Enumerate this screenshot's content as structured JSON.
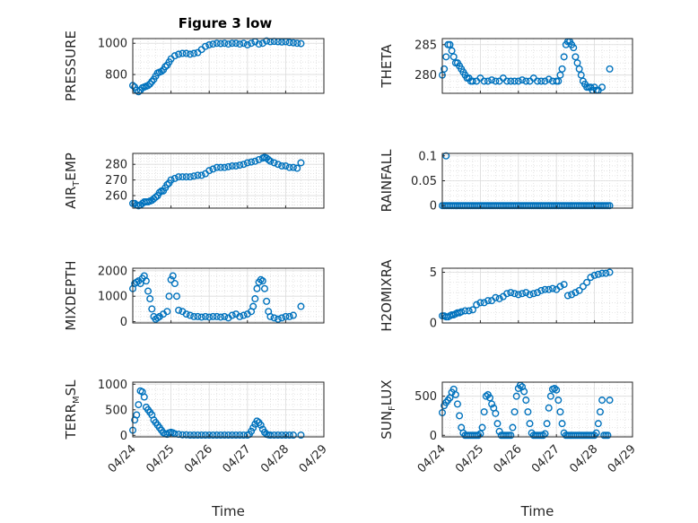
{
  "figure": {
    "title": "Figure 3 low",
    "x_axis_label": "Time",
    "marker_color": "#0072BD"
  },
  "chart_data": [
    {
      "type": "scatter",
      "ylabel": "PRESSURE",
      "ylabel_base": "PRESSURE",
      "ylabel_sub": "",
      "ylabel_rest": "",
      "xlim": [
        "04/24",
        "04/29"
      ],
      "ylim": [
        680,
        1030
      ],
      "yticks": [
        800,
        1000
      ],
      "xticks": [
        "04/24",
        "04/25",
        "04/26",
        "04/27",
        "04/28",
        "04/29"
      ],
      "grid": true,
      "x": [
        0.0,
        0.05,
        0.1,
        0.15,
        0.2,
        0.25,
        0.3,
        0.35,
        0.4,
        0.45,
        0.5,
        0.55,
        0.6,
        0.65,
        0.7,
        0.75,
        0.8,
        0.85,
        0.9,
        0.95,
        1.0,
        1.1,
        1.2,
        1.3,
        1.4,
        1.5,
        1.6,
        1.7,
        1.8,
        1.9,
        2.0,
        2.1,
        2.2,
        2.3,
        2.4,
        2.5,
        2.6,
        2.7,
        2.8,
        2.9,
        3.0,
        3.1,
        3.2,
        3.3,
        3.4,
        3.5,
        3.6,
        3.7,
        3.8,
        3.9,
        4.0,
        4.1,
        4.2,
        4.3,
        4.4
      ],
      "y": [
        730,
        720,
        700,
        690,
        700,
        715,
        720,
        725,
        730,
        740,
        755,
        770,
        790,
        810,
        815,
        820,
        830,
        850,
        860,
        880,
        900,
        920,
        930,
        935,
        935,
        930,
        935,
        940,
        960,
        980,
        990,
        995,
        1000,
        998,
        1000,
        995,
        1000,
        1000,
        995,
        1000,
        990,
        1000,
        1010,
        995,
        1000,
        1015,
        1010,
        1012,
        1010,
        1008,
        1010,
        1005,
        1003,
        1000,
        998
      ]
    },
    {
      "type": "scatter",
      "ylabel": "THETA",
      "ylabel_base": "THETA",
      "ylabel_sub": "",
      "ylabel_rest": "",
      "xlim": [
        "04/24",
        "04/29"
      ],
      "ylim": [
        277,
        286
      ],
      "yticks": [
        280,
        285
      ],
      "xticks": [
        "04/24",
        "04/25",
        "04/26",
        "04/27",
        "04/28",
        "04/29"
      ],
      "grid": true,
      "x": [
        0.0,
        0.05,
        0.1,
        0.15,
        0.2,
        0.25,
        0.3,
        0.35,
        0.4,
        0.45,
        0.5,
        0.55,
        0.6,
        0.65,
        0.7,
        0.75,
        0.8,
        0.9,
        1.0,
        1.1,
        1.2,
        1.3,
        1.4,
        1.5,
        1.6,
        1.7,
        1.8,
        1.9,
        2.0,
        2.1,
        2.2,
        2.3,
        2.4,
        2.5,
        2.6,
        2.7,
        2.8,
        2.9,
        3.0,
        3.05,
        3.1,
        3.15,
        3.2,
        3.25,
        3.3,
        3.35,
        3.4,
        3.45,
        3.5,
        3.55,
        3.6,
        3.65,
        3.7,
        3.75,
        3.8,
        3.85,
        3.9,
        3.95,
        4.0,
        4.05,
        4.1,
        4.2,
        4.4
      ],
      "y": [
        280,
        281,
        283,
        285,
        285,
        284,
        283,
        282,
        282,
        281.5,
        281,
        280.5,
        280,
        279.5,
        279.5,
        279,
        279,
        279,
        279.5,
        279,
        279,
        279.2,
        279,
        279,
        279.5,
        279,
        279,
        279,
        279,
        279.2,
        279,
        279,
        279.5,
        279,
        279,
        279,
        279.3,
        279,
        279,
        279,
        280,
        281,
        283,
        285,
        285.5,
        285.5,
        285,
        284.5,
        283,
        282,
        281,
        280,
        279,
        278.5,
        278,
        278,
        278,
        277.5,
        278,
        277.5,
        277.5,
        278,
        281
      ]
    },
    {
      "type": "scatter",
      "ylabel": "AIR_TEMP",
      "ylabel_base": "AIR",
      "ylabel_sub": "T",
      "ylabel_rest": "EMP",
      "xlim": [
        "04/24",
        "04/29"
      ],
      "ylim": [
        252,
        287
      ],
      "yticks": [
        260,
        270,
        280
      ],
      "xticks": [
        "04/24",
        "04/25",
        "04/26",
        "04/27",
        "04/28",
        "04/29"
      ],
      "grid": true,
      "x": [
        0.0,
        0.05,
        0.1,
        0.15,
        0.2,
        0.25,
        0.3,
        0.35,
        0.4,
        0.45,
        0.5,
        0.55,
        0.6,
        0.65,
        0.7,
        0.75,
        0.8,
        0.85,
        0.9,
        0.95,
        1.0,
        1.1,
        1.2,
        1.3,
        1.4,
        1.5,
        1.6,
        1.7,
        1.8,
        1.9,
        2.0,
        2.1,
        2.2,
        2.3,
        2.4,
        2.5,
        2.6,
        2.7,
        2.8,
        2.9,
        3.0,
        3.1,
        3.2,
        3.3,
        3.4,
        3.45,
        3.5,
        3.55,
        3.6,
        3.7,
        3.8,
        3.9,
        4.0,
        4.1,
        4.2,
        4.3,
        4.4
      ],
      "y": [
        255,
        255,
        254,
        253.5,
        254,
        255,
        256,
        256,
        256,
        256.5,
        257,
        258,
        259,
        260,
        262,
        263,
        263,
        265,
        267,
        268,
        270,
        271,
        272,
        272,
        272,
        272,
        272.5,
        273,
        273,
        274,
        276,
        277,
        278,
        278,
        278,
        278.5,
        279,
        279,
        279.5,
        280,
        281,
        281.5,
        282,
        283,
        284,
        284.5,
        284,
        283,
        282,
        281,
        280,
        279,
        279,
        278,
        278,
        277.5,
        281
      ]
    },
    {
      "type": "scatter",
      "ylabel": "RAINFALL",
      "ylabel_base": "RAINFALL",
      "ylabel_sub": "",
      "ylabel_rest": "",
      "xlim": [
        "04/24",
        "04/29"
      ],
      "ylim": [
        -0.005,
        0.105
      ],
      "yticks": [
        0,
        0.05,
        0.1
      ],
      "ytick_labels": [
        "0",
        "0.05",
        "0.1"
      ],
      "xticks": [
        "04/24",
        "04/25",
        "04/26",
        "04/27",
        "04/28",
        "04/29"
      ],
      "grid": true,
      "x": [
        0.0,
        0.05,
        0.1,
        0.15,
        0.2,
        0.25,
        0.3,
        0.35,
        0.4,
        0.45,
        0.5,
        0.55,
        0.6,
        0.65,
        0.7,
        0.75,
        0.8,
        0.85,
        0.9,
        0.95,
        1.0,
        1.05,
        1.1,
        1.15,
        1.2,
        1.25,
        1.3,
        1.35,
        1.4,
        1.45,
        1.5,
        1.55,
        1.6,
        1.65,
        1.7,
        1.75,
        1.8,
        1.85,
        1.9,
        1.95,
        2.0,
        2.05,
        2.1,
        2.15,
        2.2,
        2.25,
        2.3,
        2.35,
        2.4,
        2.45,
        2.5,
        2.55,
        2.6,
        2.65,
        2.7,
        2.75,
        2.8,
        2.85,
        2.9,
        2.95,
        3.0,
        3.05,
        3.1,
        3.15,
        3.2,
        3.25,
        3.3,
        3.35,
        3.4,
        3.45,
        3.5,
        3.55,
        3.6,
        3.65,
        3.7,
        3.75,
        3.8,
        3.85,
        3.9,
        3.95,
        4.0,
        4.05,
        4.1,
        4.15,
        4.2,
        4.25,
        4.3,
        4.35,
        4.4,
        0.1
      ],
      "y": [
        0,
        0,
        0,
        0,
        0,
        0,
        0,
        0,
        0,
        0,
        0,
        0,
        0,
        0,
        0,
        0,
        0,
        0,
        0,
        0,
        0,
        0,
        0,
        0,
        0,
        0,
        0,
        0,
        0,
        0,
        0,
        0,
        0,
        0,
        0,
        0,
        0,
        0,
        0,
        0,
        0,
        0,
        0,
        0,
        0,
        0,
        0,
        0,
        0,
        0,
        0,
        0,
        0,
        0,
        0,
        0,
        0,
        0,
        0,
        0,
        0,
        0,
        0,
        0,
        0,
        0,
        0,
        0,
        0,
        0,
        0,
        0,
        0,
        0,
        0,
        0,
        0,
        0,
        0,
        0,
        0,
        0,
        0,
        0,
        0,
        0,
        0,
        0,
        0,
        0.1
      ]
    },
    {
      "type": "scatter",
      "ylabel": "MIXDEPTH",
      "ylabel_base": "MIXDEPTH",
      "ylabel_sub": "",
      "ylabel_rest": "",
      "xlim": [
        "04/24",
        "04/29"
      ],
      "ylim": [
        -50,
        2100
      ],
      "yticks": [
        0,
        1000,
        2000
      ],
      "xticks": [
        "04/24",
        "04/25",
        "04/26",
        "04/27",
        "04/28",
        "04/29"
      ],
      "grid": true,
      "x": [
        0.0,
        0.05,
        0.1,
        0.15,
        0.2,
        0.25,
        0.3,
        0.35,
        0.4,
        0.45,
        0.5,
        0.55,
        0.6,
        0.65,
        0.7,
        0.8,
        0.9,
        0.95,
        1.0,
        1.05,
        1.1,
        1.15,
        1.2,
        1.3,
        1.4,
        1.5,
        1.6,
        1.7,
        1.8,
        1.9,
        2.0,
        2.1,
        2.2,
        2.3,
        2.4,
        2.5,
        2.6,
        2.7,
        2.8,
        2.9,
        3.0,
        3.1,
        3.15,
        3.2,
        3.25,
        3.3,
        3.35,
        3.4,
        3.45,
        3.5,
        3.55,
        3.6,
        3.7,
        3.8,
        3.9,
        4.0,
        4.1,
        4.2,
        4.4
      ],
      "y": [
        1300,
        1500,
        1550,
        1600,
        1500,
        1700,
        1800,
        1600,
        1200,
        900,
        500,
        200,
        100,
        150,
        200,
        300,
        400,
        1000,
        1650,
        1800,
        1500,
        1000,
        450,
        400,
        300,
        250,
        200,
        200,
        180,
        200,
        180,
        200,
        200,
        180,
        200,
        150,
        250,
        300,
        200,
        250,
        300,
        400,
        600,
        900,
        1300,
        1550,
        1650,
        1600,
        1300,
        800,
        400,
        200,
        150,
        100,
        150,
        200,
        200,
        250,
        600
      ]
    },
    {
      "type": "scatter",
      "ylabel": "H2OMIXRA",
      "ylabel_base": "H2OMIXRA",
      "ylabel_sub": "",
      "ylabel_rest": "",
      "xlim": [
        "04/24",
        "04/29"
      ],
      "ylim": [
        0,
        5.4
      ],
      "yticks": [
        0,
        5
      ],
      "xticks": [
        "04/24",
        "04/25",
        "04/26",
        "04/27",
        "04/28",
        "04/29"
      ],
      "grid": true,
      "x": [
        0.0,
        0.05,
        0.1,
        0.15,
        0.2,
        0.25,
        0.3,
        0.35,
        0.4,
        0.45,
        0.5,
        0.6,
        0.7,
        0.8,
        0.9,
        1.0,
        1.1,
        1.2,
        1.3,
        1.4,
        1.5,
        1.6,
        1.7,
        1.8,
        1.9,
        2.0,
        2.1,
        2.2,
        2.3,
        2.4,
        2.5,
        2.6,
        2.7,
        2.8,
        2.9,
        3.0,
        3.1,
        3.2,
        3.3,
        3.4,
        3.5,
        3.6,
        3.7,
        3.8,
        3.9,
        4.0,
        4.1,
        4.2,
        4.3,
        4.4
      ],
      "y": [
        0.7,
        0.7,
        0.6,
        0.6,
        0.7,
        0.8,
        0.8,
        0.9,
        1.0,
        1.0,
        1.1,
        1.2,
        1.2,
        1.3,
        1.8,
        2.0,
        2.0,
        2.2,
        2.2,
        2.5,
        2.4,
        2.6,
        2.9,
        3.0,
        2.9,
        2.8,
        2.9,
        3.0,
        2.8,
        2.9,
        3.0,
        3.2,
        3.3,
        3.3,
        3.4,
        3.3,
        3.6,
        3.8,
        2.7,
        2.8,
        3.0,
        3.2,
        3.6,
        4.0,
        4.5,
        4.7,
        4.8,
        4.9,
        4.9,
        5.0
      ]
    },
    {
      "type": "scatter",
      "ylabel": "TERR_MSL",
      "ylabel_base": "TERR",
      "ylabel_sub": "M",
      "ylabel_rest": "SL",
      "xlim": [
        "04/24",
        "04/29"
      ],
      "ylim": [
        -30,
        1040
      ],
      "yticks": [
        0,
        500,
        1000
      ],
      "xticks": [
        "04/24",
        "04/25",
        "04/26",
        "04/27",
        "04/28",
        "04/29"
      ],
      "grid": true,
      "x": [
        0.0,
        0.05,
        0.1,
        0.15,
        0.2,
        0.25,
        0.3,
        0.35,
        0.4,
        0.45,
        0.5,
        0.55,
        0.6,
        0.65,
        0.7,
        0.75,
        0.8,
        0.85,
        0.9,
        0.95,
        1.0,
        1.05,
        1.1,
        1.2,
        1.3,
        1.4,
        1.5,
        1.6,
        1.7,
        1.8,
        1.9,
        2.0,
        2.1,
        2.2,
        2.3,
        2.4,
        2.5,
        2.6,
        2.7,
        2.8,
        2.9,
        3.0,
        3.05,
        3.1,
        3.15,
        3.2,
        3.25,
        3.3,
        3.35,
        3.4,
        3.45,
        3.5,
        3.55,
        3.6,
        3.7,
        3.8,
        3.9,
        4.0,
        4.1,
        4.2,
        4.4
      ],
      "y": [
        100,
        300,
        400,
        600,
        870,
        850,
        750,
        550,
        500,
        450,
        400,
        300,
        250,
        200,
        150,
        100,
        50,
        30,
        20,
        50,
        60,
        50,
        30,
        20,
        10,
        10,
        5,
        5,
        5,
        5,
        5,
        5,
        5,
        5,
        5,
        5,
        5,
        5,
        5,
        5,
        5,
        5,
        20,
        80,
        150,
        220,
        280,
        250,
        200,
        120,
        60,
        20,
        10,
        5,
        5,
        5,
        5,
        5,
        5,
        5,
        5
      ]
    },
    {
      "type": "scatter",
      "ylabel": "SUN_FLUX",
      "ylabel_base": "SUN",
      "ylabel_sub": "F",
      "ylabel_rest": "LUX",
      "xlim": [
        "04/24",
        "04/29"
      ],
      "ylim": [
        -20,
        680
      ],
      "yticks": [
        0,
        500
      ],
      "xticks": [
        "04/24",
        "04/25",
        "04/26",
        "04/27",
        "04/28",
        "04/29"
      ],
      "grid": true,
      "x": [
        0.0,
        0.05,
        0.1,
        0.15,
        0.2,
        0.25,
        0.3,
        0.35,
        0.4,
        0.45,
        0.5,
        0.55,
        0.6,
        0.65,
        0.7,
        0.75,
        0.8,
        0.85,
        0.9,
        0.95,
        1.0,
        1.05,
        1.1,
        1.15,
        1.2,
        1.25,
        1.3,
        1.35,
        1.4,
        1.45,
        1.5,
        1.55,
        1.6,
        1.65,
        1.7,
        1.75,
        1.8,
        1.85,
        1.9,
        1.95,
        2.0,
        2.05,
        2.1,
        2.15,
        2.2,
        2.25,
        2.3,
        2.35,
        2.4,
        2.45,
        2.5,
        2.55,
        2.6,
        2.65,
        2.7,
        2.75,
        2.8,
        2.85,
        2.9,
        2.95,
        3.0,
        3.05,
        3.1,
        3.15,
        3.2,
        3.25,
        3.3,
        3.35,
        3.4,
        3.45,
        3.5,
        3.55,
        3.6,
        3.65,
        3.7,
        3.75,
        3.8,
        3.85,
        3.9,
        3.95,
        4.0,
        4.05,
        4.1,
        4.15,
        4.2,
        4.25,
        4.3,
        4.35,
        4.4
      ],
      "y": [
        290,
        380,
        420,
        450,
        480,
        550,
        590,
        520,
        400,
        250,
        100,
        30,
        0,
        0,
        0,
        0,
        0,
        0,
        0,
        0,
        20,
        100,
        300,
        500,
        520,
        480,
        400,
        350,
        280,
        150,
        50,
        0,
        0,
        0,
        0,
        0,
        0,
        100,
        300,
        500,
        600,
        640,
        620,
        560,
        450,
        300,
        150,
        30,
        0,
        0,
        0,
        0,
        0,
        0,
        20,
        150,
        350,
        500,
        590,
        600,
        580,
        450,
        300,
        150,
        30,
        0,
        0,
        0,
        0,
        0,
        0,
        0,
        0,
        0,
        0,
        0,
        0,
        0,
        0,
        0,
        0,
        30,
        150,
        300,
        450,
        0,
        0,
        0,
        450
      ]
    }
  ]
}
